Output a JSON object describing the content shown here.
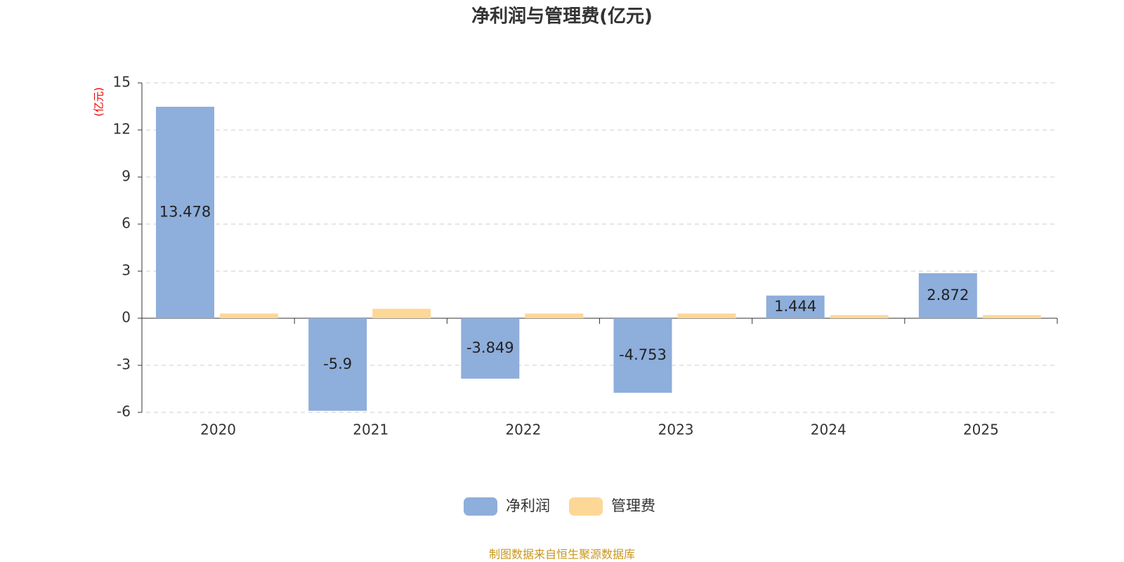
{
  "chart_data": {
    "type": "bar",
    "title": "净利润与管理费(亿元)",
    "y_axis_label": "(亿元)",
    "categories": [
      "2020",
      "2021",
      "2022",
      "2023",
      "2024",
      "2025"
    ],
    "series": [
      {
        "name": "净利润",
        "color": "#8eaedb",
        "values": [
          13.478,
          -5.9,
          -3.849,
          -4.753,
          1.444,
          2.872
        ]
      },
      {
        "name": "管理费",
        "color": "#fdd796",
        "values": [
          0.3,
          0.6,
          0.3,
          0.3,
          0.2,
          0.2
        ]
      }
    ],
    "ylim": [
      -6,
      15
    ],
    "yticks": [
      -6,
      -3,
      0,
      3,
      6,
      9,
      12,
      15
    ],
    "grid": true,
    "source": "制图数据来自恒生聚源数据库"
  }
}
